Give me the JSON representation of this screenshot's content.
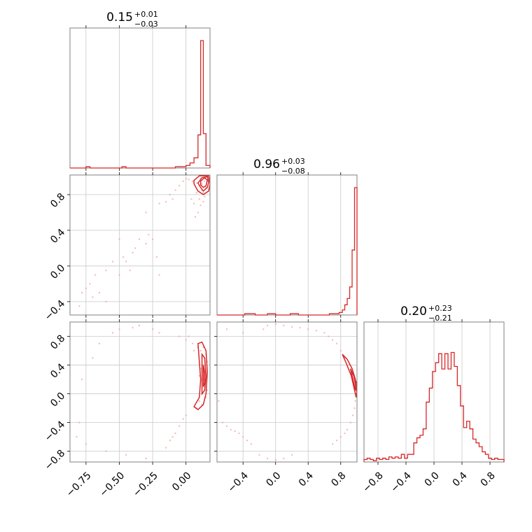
{
  "chart_data": [
    {
      "type": "histogram",
      "panel": "x0-marginal",
      "title": {
        "value": "0.15",
        "plus": "+0.01",
        "minus": "−0.03"
      },
      "xlim": [
        -0.87,
        0.18
      ],
      "bins": [
        {
          "lo": -0.87,
          "hi": -0.75,
          "h": 0.0
        },
        {
          "lo": -0.75,
          "hi": -0.72,
          "h": 0.01
        },
        {
          "lo": -0.72,
          "hi": -0.48,
          "h": 0.0
        },
        {
          "lo": -0.48,
          "hi": -0.45,
          "h": 0.01
        },
        {
          "lo": -0.45,
          "hi": -0.08,
          "h": 0.0
        },
        {
          "lo": -0.08,
          "hi": 0.0,
          "h": 0.01
        },
        {
          "lo": 0.0,
          "hi": 0.03,
          "h": 0.02
        },
        {
          "lo": 0.03,
          "hi": 0.06,
          "h": 0.04
        },
        {
          "lo": 0.06,
          "hi": 0.09,
          "h": 0.08
        },
        {
          "lo": 0.09,
          "hi": 0.11,
          "h": 0.26
        },
        {
          "lo": 0.11,
          "hi": 0.13,
          "h": 1.0
        },
        {
          "lo": 0.13,
          "hi": 0.15,
          "h": 0.27
        },
        {
          "lo": 0.15,
          "hi": 0.18,
          "h": 0.02
        }
      ]
    },
    {
      "type": "histogram",
      "panel": "x1-marginal",
      "title": {
        "value": "0.96",
        "plus": "+0.03",
        "minus": "−0.08"
      },
      "xlim": [
        -0.72,
        1.0
      ],
      "bins": [
        {
          "lo": -0.72,
          "hi": -0.38,
          "h": 0.0
        },
        {
          "lo": -0.38,
          "hi": -0.25,
          "h": 0.01
        },
        {
          "lo": -0.25,
          "hi": -0.1,
          "h": 0.0
        },
        {
          "lo": -0.1,
          "hi": 0.0,
          "h": 0.01
        },
        {
          "lo": 0.0,
          "hi": 0.18,
          "h": 0.0
        },
        {
          "lo": 0.18,
          "hi": 0.28,
          "h": 0.01
        },
        {
          "lo": 0.28,
          "hi": 0.66,
          "h": 0.0
        },
        {
          "lo": 0.66,
          "hi": 0.78,
          "h": 0.01
        },
        {
          "lo": 0.78,
          "hi": 0.82,
          "h": 0.02
        },
        {
          "lo": 0.82,
          "hi": 0.85,
          "h": 0.04
        },
        {
          "lo": 0.85,
          "hi": 0.88,
          "h": 0.08
        },
        {
          "lo": 0.88,
          "hi": 0.91,
          "h": 0.13
        },
        {
          "lo": 0.91,
          "hi": 0.94,
          "h": 0.22
        },
        {
          "lo": 0.94,
          "hi": 0.97,
          "h": 0.51
        },
        {
          "lo": 0.97,
          "hi": 1.0,
          "h": 1.0
        }
      ]
    },
    {
      "type": "histogram",
      "panel": "x2-marginal",
      "title": {
        "value": "0.20",
        "plus": "+0.23",
        "minus": "−0.21"
      },
      "xlim": [
        -1.0,
        1.0
      ],
      "heights": [
        0.02,
        0.03,
        0.02,
        0.01,
        0.03,
        0.02,
        0.03,
        0.02,
        0.04,
        0.03,
        0.04,
        0.03,
        0.06,
        0.03,
        0.06,
        0.06,
        0.15,
        0.19,
        0.21,
        0.26,
        0.47,
        0.58,
        0.71,
        0.78,
        0.85,
        0.73,
        0.85,
        0.73,
        0.86,
        0.75,
        0.6,
        0.44,
        0.27,
        0.32,
        0.26,
        0.18,
        0.15,
        0.12,
        0.08,
        0.06,
        0.03,
        0.02,
        0.03,
        0.02,
        0.02
      ]
    },
    {
      "type": "scatter",
      "panel": "x0-vs-x1",
      "xlim": [
        -0.87,
        0.18
      ],
      "ylim": [
        -0.55,
        1.02
      ],
      "contour_levels": 3,
      "points": [
        [
          -0.8,
          -0.45
        ],
        [
          -0.78,
          -0.3
        ],
        [
          -0.75,
          -0.25
        ],
        [
          -0.72,
          -0.2
        ],
        [
          -0.7,
          -0.35
        ],
        [
          -0.68,
          -0.1
        ],
        [
          -0.65,
          -0.3
        ],
        [
          -0.6,
          -0.05
        ],
        [
          -0.55,
          0.05
        ],
        [
          -0.5,
          -0.1
        ],
        [
          -0.47,
          0.1
        ],
        [
          -0.45,
          0.05
        ],
        [
          -0.42,
          -0.05
        ],
        [
          -0.4,
          0.15
        ],
        [
          -0.38,
          0.2
        ],
        [
          -0.35,
          0.3
        ],
        [
          -0.3,
          0.25
        ],
        [
          -0.28,
          0.35
        ],
        [
          -0.25,
          0.3
        ],
        [
          -0.22,
          0.1
        ],
        [
          -0.3,
          0.6
        ],
        [
          -0.15,
          0.72
        ],
        [
          -0.12,
          0.8
        ],
        [
          -0.08,
          0.85
        ],
        [
          -0.05,
          0.9
        ],
        [
          -0.02,
          0.95
        ],
        [
          0.0,
          0.98
        ],
        [
          0.02,
          0.97
        ],
        [
          0.05,
          0.95
        ],
        [
          0.08,
          0.93
        ],
        [
          0.1,
          0.9
        ],
        [
          0.12,
          0.85
        ],
        [
          0.13,
          0.82
        ],
        [
          0.14,
          0.78
        ],
        [
          0.13,
          0.72
        ],
        [
          0.11,
          0.68
        ],
        [
          0.09,
          0.6
        ],
        [
          0.07,
          0.55
        ],
        [
          0.06,
          0.7
        ],
        [
          0.1,
          0.75
        ],
        [
          0.12,
          0.92
        ],
        [
          0.15,
          0.88
        ],
        [
          0.04,
          0.75
        ],
        [
          0.08,
          0.82
        ],
        [
          -0.2,
          0.7
        ],
        [
          -0.1,
          0.75
        ],
        [
          0.11,
          0.98
        ],
        [
          0.14,
          0.95
        ],
        [
          -0.6,
          -0.4
        ],
        [
          -0.5,
          0.3
        ],
        [
          -0.2,
          -0.1
        ]
      ],
      "contours": [
        [
          [
            0.09,
            0.93
          ],
          [
            0.12,
            0.99
          ],
          [
            0.16,
            1.0
          ],
          [
            0.17,
            0.94
          ],
          [
            0.16,
            0.88
          ],
          [
            0.13,
            0.84
          ],
          [
            0.11,
            0.88
          ],
          [
            0.09,
            0.93
          ]
        ],
        [
          [
            0.11,
            0.95
          ],
          [
            0.14,
            0.99
          ],
          [
            0.16,
            0.96
          ],
          [
            0.15,
            0.9
          ],
          [
            0.13,
            0.88
          ],
          [
            0.11,
            0.91
          ],
          [
            0.11,
            0.95
          ]
        ],
        [
          [
            0.06,
            0.96
          ],
          [
            0.1,
            1.01
          ],
          [
            0.17,
            1.01
          ],
          [
            0.18,
            0.92
          ],
          [
            0.17,
            0.84
          ],
          [
            0.13,
            0.8
          ],
          [
            0.09,
            0.84
          ],
          [
            0.06,
            0.92
          ],
          [
            0.06,
            0.96
          ]
        ]
      ]
    },
    {
      "type": "scatter",
      "panel": "x0-vs-x2",
      "xlim": [
        -0.87,
        0.18
      ],
      "ylim": [
        -0.95,
        1.0
      ],
      "contour_levels": 3,
      "points": [
        [
          -0.82,
          -0.6
        ],
        [
          -0.8,
          -0.4
        ],
        [
          -0.78,
          0.2
        ],
        [
          -0.75,
          -0.7
        ],
        [
          -0.7,
          0.5
        ],
        [
          -0.65,
          0.7
        ],
        [
          -0.6,
          -0.8
        ],
        [
          -0.55,
          0.85
        ],
        [
          -0.5,
          0.9
        ],
        [
          -0.45,
          -0.85
        ],
        [
          -0.4,
          0.92
        ],
        [
          -0.35,
          0.95
        ],
        [
          -0.3,
          -0.9
        ],
        [
          -0.25,
          0.9
        ],
        [
          -0.2,
          0.85
        ],
        [
          -0.15,
          -0.75
        ],
        [
          -0.1,
          -0.6
        ],
        [
          -0.05,
          -0.45
        ],
        [
          0.0,
          -0.3
        ],
        [
          0.02,
          0.8
        ],
        [
          0.05,
          0.7
        ],
        [
          0.06,
          0.6
        ],
        [
          0.08,
          -0.2
        ],
        [
          0.1,
          -0.1
        ],
        [
          0.12,
          0.0
        ],
        [
          0.13,
          0.1
        ],
        [
          0.14,
          0.2
        ],
        [
          0.14,
          0.3
        ],
        [
          0.13,
          0.4
        ],
        [
          0.12,
          0.5
        ],
        [
          0.11,
          0.6
        ],
        [
          0.09,
          0.65
        ],
        [
          0.15,
          0.55
        ],
        [
          0.16,
          0.45
        ],
        [
          0.16,
          0.05
        ],
        [
          0.15,
          -0.05
        ],
        [
          0.11,
          0.35
        ],
        [
          0.1,
          0.25
        ],
        [
          0.12,
          -0.15
        ],
        [
          0.13,
          0.65
        ],
        [
          -0.02,
          -0.35
        ],
        [
          -0.08,
          -0.55
        ],
        [
          -0.12,
          -0.65
        ],
        [
          0.0,
          0.75
        ],
        [
          -0.05,
          0.8
        ]
      ],
      "contours": [
        [
          [
            0.09,
            0.7
          ],
          [
            0.12,
            0.72
          ],
          [
            0.15,
            0.6
          ],
          [
            0.16,
            0.3
          ],
          [
            0.15,
            0.0
          ],
          [
            0.13,
            -0.15
          ],
          [
            0.09,
            -0.22
          ],
          [
            0.06,
            -0.18
          ],
          [
            0.1,
            -0.05
          ],
          [
            0.11,
            0.2
          ],
          [
            0.1,
            0.45
          ],
          [
            0.09,
            0.7
          ]
        ],
        [
          [
            0.12,
            0.55
          ],
          [
            0.14,
            0.5
          ],
          [
            0.15,
            0.25
          ],
          [
            0.14,
            0.05
          ],
          [
            0.12,
            0.0
          ],
          [
            0.12,
            0.3
          ],
          [
            0.12,
            0.55
          ]
        ],
        [
          [
            0.13,
            0.4
          ],
          [
            0.14,
            0.3
          ],
          [
            0.14,
            0.15
          ],
          [
            0.13,
            0.1
          ],
          [
            0.13,
            0.4
          ]
        ]
      ]
    },
    {
      "type": "scatter",
      "panel": "x1-vs-x2",
      "xlim": [
        -0.72,
        1.0
      ],
      "ylim": [
        -0.95,
        1.0
      ],
      "contour_levels": 3,
      "points": [
        [
          -0.7,
          -0.1
        ],
        [
          -0.65,
          -0.4
        ],
        [
          -0.6,
          -0.45
        ],
        [
          -0.55,
          -0.5
        ],
        [
          -0.5,
          -0.52
        ],
        [
          -0.45,
          -0.55
        ],
        [
          -0.4,
          -0.6
        ],
        [
          -0.35,
          -0.65
        ],
        [
          -0.3,
          -0.7
        ],
        [
          -0.2,
          -0.85
        ],
        [
          -0.1,
          -0.9
        ],
        [
          0.0,
          -0.92
        ],
        [
          0.1,
          -0.9
        ],
        [
          0.2,
          -0.85
        ],
        [
          -0.15,
          0.9
        ],
        [
          -0.1,
          0.95
        ],
        [
          0.0,
          0.97
        ],
        [
          0.1,
          0.95
        ],
        [
          0.2,
          0.93
        ],
        [
          0.3,
          0.92
        ],
        [
          0.4,
          0.9
        ],
        [
          0.5,
          0.88
        ],
        [
          0.6,
          0.85
        ],
        [
          0.65,
          0.8
        ],
        [
          0.7,
          0.75
        ],
        [
          0.75,
          0.7
        ],
        [
          0.8,
          0.6
        ],
        [
          0.85,
          0.5
        ],
        [
          0.9,
          0.4
        ],
        [
          0.93,
          0.3
        ],
        [
          0.95,
          0.2
        ],
        [
          0.97,
          0.1
        ],
        [
          0.98,
          0.0
        ],
        [
          0.98,
          -0.1
        ],
        [
          0.97,
          -0.2
        ],
        [
          0.95,
          -0.3
        ],
        [
          0.92,
          -0.4
        ],
        [
          0.88,
          -0.5
        ],
        [
          0.85,
          -0.55
        ],
        [
          0.8,
          -0.6
        ],
        [
          0.75,
          -0.65
        ],
        [
          0.7,
          -0.7
        ],
        [
          -0.6,
          0.9
        ],
        [
          -0.4,
          0.85
        ]
      ],
      "contours": [
        [
          [
            0.82,
            0.55
          ],
          [
            0.88,
            0.48
          ],
          [
            0.94,
            0.35
          ],
          [
            0.98,
            0.2
          ],
          [
            1.0,
            0.05
          ],
          [
            0.99,
            -0.05
          ],
          [
            0.97,
            0.05
          ],
          [
            0.93,
            0.25
          ],
          [
            0.87,
            0.42
          ],
          [
            0.82,
            0.55
          ]
        ],
        [
          [
            0.92,
            0.35
          ],
          [
            0.96,
            0.25
          ],
          [
            0.99,
            0.1
          ],
          [
            0.98,
            0.05
          ],
          [
            0.95,
            0.2
          ],
          [
            0.92,
            0.35
          ]
        ],
        [
          [
            0.97,
            0.2
          ],
          [
            1.0,
            0.15
          ],
          [
            1.0,
            0.0
          ],
          [
            0.97,
            0.2
          ]
        ]
      ]
    }
  ],
  "axes": {
    "x0_ticks": [
      "−0.75",
      "−0.50",
      "−0.25",
      "0.00"
    ],
    "x0_tick_values": [
      -0.75,
      -0.5,
      -0.25,
      0.0
    ],
    "x1_ticks": [
      "−0.4",
      "0.0",
      "0.4",
      "0.8"
    ],
    "x1_tick_values": [
      -0.4,
      0.0,
      0.4,
      0.8
    ],
    "x2_ticks": [
      "−0.8",
      "−0.4",
      "0.0",
      "0.4",
      "0.8"
    ],
    "x2_tick_values": [
      -0.8,
      -0.4,
      0.0,
      0.4,
      0.8
    ],
    "x1_ylabel_ticks": [
      "−0.4",
      "0.0",
      "0.4",
      "0.8"
    ],
    "x2_ylabel_ticks": [
      "−0.8",
      "−0.4",
      "0.0",
      "0.4",
      "0.8"
    ]
  },
  "colors": {
    "line": "#d62728",
    "points": "#f2a3a3",
    "grid": "#c8c8c8",
    "frame": "#808080"
  }
}
